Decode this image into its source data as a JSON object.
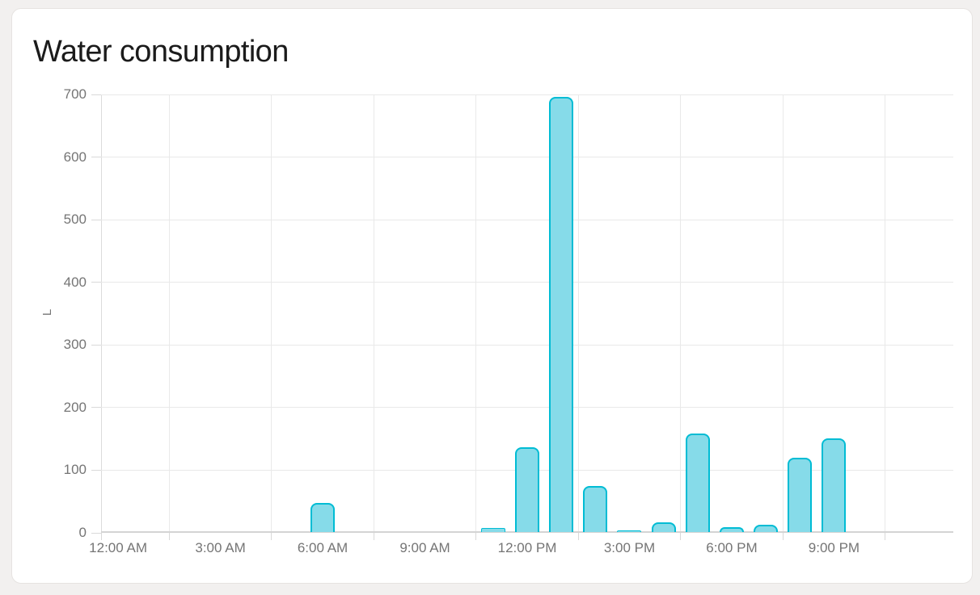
{
  "card": {
    "title": "Water consumption"
  },
  "chart_data": {
    "type": "bar",
    "title": "Water consumption",
    "xlabel": "",
    "ylabel": "L",
    "ylim": [
      0,
      700
    ],
    "y_ticks": [
      0,
      100,
      200,
      300,
      400,
      500,
      600,
      700
    ],
    "x_tick_labels": [
      "12:00 AM",
      "3:00 AM",
      "6:00 AM",
      "9:00 AM",
      "12:00 PM",
      "3:00 PM",
      "6:00 PM",
      "9:00 PM"
    ],
    "categories": [
      "12:00 AM",
      "1:00 AM",
      "2:00 AM",
      "3:00 AM",
      "4:00 AM",
      "5:00 AM",
      "6:00 AM",
      "7:00 AM",
      "8:00 AM",
      "9:00 AM",
      "10:00 AM",
      "11:00 AM",
      "12:00 PM",
      "1:00 PM",
      "2:00 PM",
      "3:00 PM",
      "4:00 PM",
      "5:00 PM",
      "6:00 PM",
      "7:00 PM",
      "8:00 PM",
      "9:00 PM",
      "10:00 PM",
      "11:00 PM"
    ],
    "values": [
      0,
      0,
      0,
      0,
      0,
      0,
      46,
      0,
      0,
      0,
      0,
      6,
      135,
      695,
      74,
      3,
      16,
      157,
      8,
      12,
      119,
      149,
      0,
      0
    ],
    "grid": true,
    "legend": false,
    "colors": {
      "bar_fill": "#86dbe9",
      "bar_border": "#00bcd4",
      "grid_line": "#e9e9e9",
      "axis_line": "#d4d4d4",
      "tick_label": "#757575",
      "title": "#1b1b1b"
    }
  }
}
